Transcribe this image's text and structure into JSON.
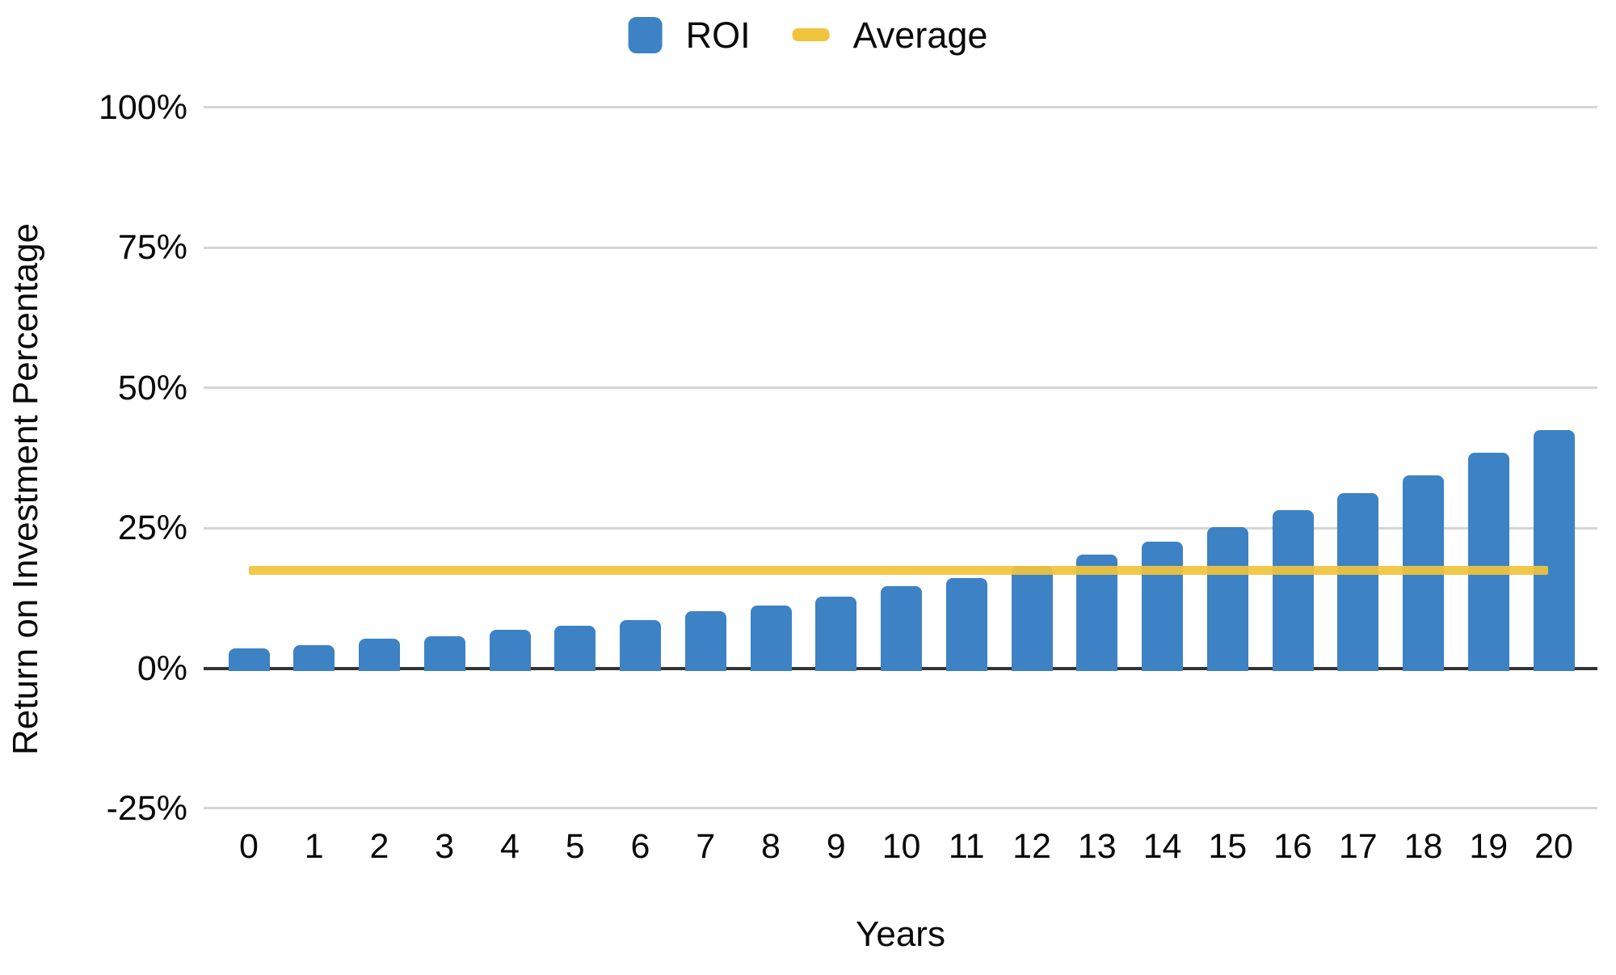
{
  "chart_data": {
    "type": "bar",
    "title": "",
    "xlabel": "Years",
    "ylabel": "Return on Investment Percentage",
    "categories": [
      "0",
      "1",
      "2",
      "3",
      "4",
      "5",
      "6",
      "7",
      "8",
      "9",
      "10",
      "11",
      "12",
      "13",
      "14",
      "15",
      "16",
      "17",
      "18",
      "19",
      "20"
    ],
    "series": [
      {
        "name": "ROI",
        "kind": "bar",
        "color": "#3d82c4",
        "values": [
          3.6,
          4.1,
          5.2,
          5.7,
          6.8,
          7.5,
          8.6,
          10.1,
          11.2,
          12.8,
          14.7,
          16.1,
          18.3,
          20.3,
          22.6,
          25.2,
          28.2,
          31.2,
          34.4,
          38.4,
          42.5
        ]
      },
      {
        "name": "Average",
        "kind": "line",
        "color": "#f0c43c",
        "values": [
          17.5,
          17.5,
          17.5,
          17.5,
          17.5,
          17.5,
          17.5,
          17.5,
          17.5,
          17.5,
          17.5,
          17.5,
          17.5,
          17.5,
          17.5,
          17.5,
          17.5,
          17.5,
          17.5,
          17.5,
          17.5
        ]
      }
    ],
    "average_value": 17.5,
    "ylim": [
      -25,
      100
    ],
    "yticks": [
      100,
      75,
      50,
      25,
      0,
      -25
    ],
    "ytick_suffix": "%",
    "grid": true,
    "legend_position": "top-center"
  },
  "colors": {
    "bar": "#3d82c4",
    "average_line": "#f0c43c",
    "gridline": "#d5d5d5",
    "zero_axis": "#333333",
    "text": "#0a0a0a",
    "background": "#ffffff"
  }
}
